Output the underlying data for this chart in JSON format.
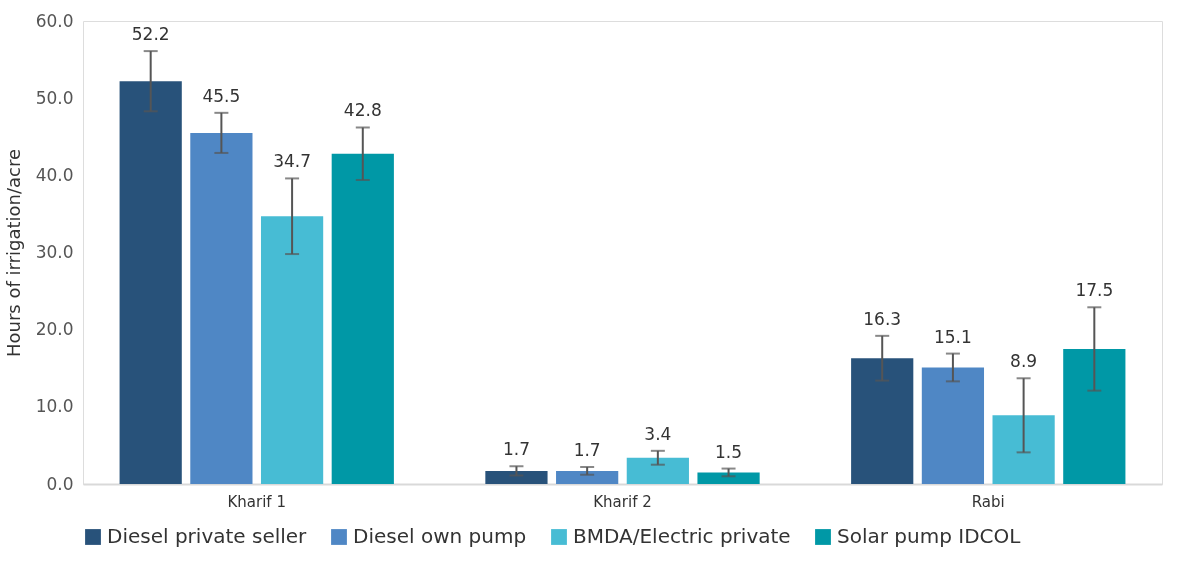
{
  "chart_data": {
    "type": "bar",
    "ylabel": "Hours of irrigation/acre",
    "categories": [
      "Kharif 1",
      "Kharif 2",
      "Rabi"
    ],
    "series": [
      {
        "name": "Diesel private seller",
        "color": "#28527a",
        "values": [
          52.2,
          1.7,
          16.3
        ],
        "errors": [
          3.9,
          0.6,
          2.9
        ]
      },
      {
        "name": "Diesel own pump",
        "color": "#4f87c5",
        "values": [
          45.5,
          1.7,
          15.1
        ],
        "errors": [
          2.6,
          0.5,
          1.8
        ]
      },
      {
        "name": "BMDA/Electric private",
        "color": "#47bcd4",
        "values": [
          34.7,
          3.4,
          8.9
        ],
        "errors": [
          4.9,
          0.9,
          4.8
        ]
      },
      {
        "name": "Solar pump IDCOL",
        "color": "#0098a6",
        "values": [
          42.8,
          1.5,
          17.5
        ],
        "errors": [
          3.4,
          0.5,
          5.4
        ]
      }
    ],
    "ylim": [
      0,
      60
    ],
    "yticks": [
      {
        "value": 0,
        "label": "0.0"
      },
      {
        "value": 10,
        "label": "10.0"
      },
      {
        "value": 20,
        "label": "20.0"
      },
      {
        "value": 30,
        "label": "30.0"
      },
      {
        "value": 40,
        "label": "40.0"
      },
      {
        "value": 50,
        "label": "50.0"
      },
      {
        "value": 60,
        "label": "60.0"
      }
    ],
    "data_labels": true,
    "grid": false,
    "legend": "bottom"
  }
}
